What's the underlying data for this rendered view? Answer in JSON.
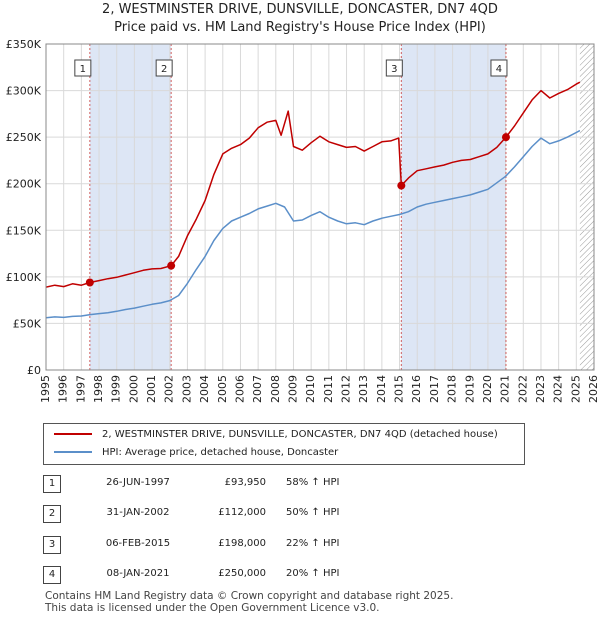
{
  "title": {
    "line1": "2, WESTMINSTER DRIVE, DUNSVILLE, DONCASTER, DN7 4QD",
    "line2": "Price paid vs. HM Land Registry's House Price Index (HPI)"
  },
  "colors": {
    "property": "#c00000",
    "hpi": "#5b8fc9",
    "band": "#dde6f5",
    "grid": "#d9d9d9",
    "marker_line": "#d06060"
  },
  "chart_data": {
    "type": "line",
    "xlim": [
      1995,
      2026
    ],
    "ylim": [
      0,
      350000
    ],
    "x_ticks": [
      1995,
      1996,
      1997,
      1998,
      1999,
      2000,
      2001,
      2002,
      2003,
      2004,
      2005,
      2006,
      2007,
      2008,
      2009,
      2010,
      2011,
      2012,
      2013,
      2014,
      2015,
      2016,
      2017,
      2018,
      2019,
      2020,
      2021,
      2022,
      2023,
      2024,
      2025,
      2026
    ],
    "y_ticks": [
      {
        "value": 0,
        "label": "£0"
      },
      {
        "value": 50000,
        "label": "£50K"
      },
      {
        "value": 100000,
        "label": "£100K"
      },
      {
        "value": 150000,
        "label": "£150K"
      },
      {
        "value": 200000,
        "label": "£200K"
      },
      {
        "value": 250000,
        "label": "£250K"
      },
      {
        "value": 300000,
        "label": "£300K"
      },
      {
        "value": 350000,
        "label": "£350K"
      }
    ],
    "shaded_bands": [
      [
        1997.48,
        2002.08
      ],
      [
        2015.1,
        2021.02
      ]
    ],
    "hatched_from": 2025.2,
    "series": [
      {
        "name": "2, WESTMINSTER DRIVE, DUNSVILLE, DONCASTER, DN7 4QD (detached house)",
        "points": [
          [
            1995.0,
            89000
          ],
          [
            1995.5,
            91000
          ],
          [
            1996.0,
            89500
          ],
          [
            1996.5,
            92500
          ],
          [
            1997.0,
            91000
          ],
          [
            1997.48,
            93950
          ],
          [
            1998.0,
            96000
          ],
          [
            1998.5,
            98000
          ],
          [
            1999.0,
            99500
          ],
          [
            1999.5,
            102000
          ],
          [
            2000.0,
            104500
          ],
          [
            2000.5,
            107000
          ],
          [
            2001.0,
            108500
          ],
          [
            2001.5,
            109000
          ],
          [
            2002.08,
            112000
          ],
          [
            2002.5,
            122000
          ],
          [
            2003.0,
            144000
          ],
          [
            2003.5,
            162000
          ],
          [
            2004.0,
            182000
          ],
          [
            2004.5,
            210000
          ],
          [
            2005.0,
            232000
          ],
          [
            2005.5,
            238000
          ],
          [
            2006.0,
            242000
          ],
          [
            2006.5,
            249000
          ],
          [
            2007.0,
            260000
          ],
          [
            2007.5,
            266000
          ],
          [
            2008.0,
            268000
          ],
          [
            2008.3,
            252000
          ],
          [
            2008.7,
            278000
          ],
          [
            2009.0,
            240000
          ],
          [
            2009.5,
            236000
          ],
          [
            2010.0,
            244000
          ],
          [
            2010.5,
            251000
          ],
          [
            2011.0,
            245000
          ],
          [
            2011.5,
            242000
          ],
          [
            2012.0,
            239000
          ],
          [
            2012.5,
            240000
          ],
          [
            2013.0,
            235000
          ],
          [
            2013.5,
            240000
          ],
          [
            2014.0,
            245000
          ],
          [
            2014.5,
            246000
          ],
          [
            2014.95,
            249000
          ],
          [
            2015.1,
            198000
          ],
          [
            2015.5,
            206000
          ],
          [
            2016.0,
            214000
          ],
          [
            2016.5,
            216000
          ],
          [
            2017.0,
            218000
          ],
          [
            2017.5,
            220000
          ],
          [
            2018.0,
            223000
          ],
          [
            2018.5,
            225000
          ],
          [
            2019.0,
            226000
          ],
          [
            2019.5,
            229000
          ],
          [
            2020.0,
            232000
          ],
          [
            2020.5,
            239000
          ],
          [
            2021.02,
            250000
          ],
          [
            2021.5,
            262000
          ],
          [
            2022.0,
            276000
          ],
          [
            2022.5,
            290000
          ],
          [
            2023.0,
            300000
          ],
          [
            2023.5,
            292000
          ],
          [
            2024.0,
            297000
          ],
          [
            2024.5,
            301000
          ],
          [
            2025.0,
            307000
          ],
          [
            2025.2,
            309000
          ]
        ]
      },
      {
        "name": "HPI: Average price, detached house, Doncaster",
        "points": [
          [
            1995.0,
            56000
          ],
          [
            1995.5,
            57000
          ],
          [
            1996.0,
            56500
          ],
          [
            1996.5,
            57500
          ],
          [
            1997.0,
            58000
          ],
          [
            1997.5,
            59500
          ],
          [
            1998.0,
            60500
          ],
          [
            1998.5,
            61500
          ],
          [
            1999.0,
            63000
          ],
          [
            1999.5,
            65000
          ],
          [
            2000.0,
            66500
          ],
          [
            2000.5,
            68500
          ],
          [
            2001.0,
            70500
          ],
          [
            2001.5,
            72000
          ],
          [
            2002.0,
            74500
          ],
          [
            2002.5,
            80000
          ],
          [
            2003.0,
            93000
          ],
          [
            2003.5,
            108000
          ],
          [
            2004.0,
            122000
          ],
          [
            2004.5,
            139000
          ],
          [
            2005.0,
            152000
          ],
          [
            2005.5,
            160000
          ],
          [
            2006.0,
            164000
          ],
          [
            2006.5,
            168000
          ],
          [
            2007.0,
            173000
          ],
          [
            2007.5,
            176000
          ],
          [
            2008.0,
            179000
          ],
          [
            2008.5,
            175000
          ],
          [
            2009.0,
            160000
          ],
          [
            2009.5,
            161000
          ],
          [
            2010.0,
            166000
          ],
          [
            2010.5,
            170000
          ],
          [
            2011.0,
            164000
          ],
          [
            2011.5,
            160000
          ],
          [
            2012.0,
            157000
          ],
          [
            2012.5,
            158000
          ],
          [
            2013.0,
            156000
          ],
          [
            2013.5,
            160000
          ],
          [
            2014.0,
            163000
          ],
          [
            2014.5,
            165000
          ],
          [
            2015.0,
            167000
          ],
          [
            2015.5,
            170000
          ],
          [
            2016.0,
            175000
          ],
          [
            2016.5,
            178000
          ],
          [
            2017.0,
            180000
          ],
          [
            2017.5,
            182000
          ],
          [
            2018.0,
            184000
          ],
          [
            2018.5,
            186000
          ],
          [
            2019.0,
            188000
          ],
          [
            2019.5,
            191000
          ],
          [
            2020.0,
            194000
          ],
          [
            2020.5,
            201000
          ],
          [
            2021.0,
            208000
          ],
          [
            2021.5,
            218000
          ],
          [
            2022.0,
            229000
          ],
          [
            2022.5,
            240000
          ],
          [
            2023.0,
            249000
          ],
          [
            2023.5,
            243000
          ],
          [
            2024.0,
            246000
          ],
          [
            2024.5,
            250000
          ],
          [
            2025.0,
            255000
          ],
          [
            2025.2,
            257000
          ]
        ]
      }
    ],
    "transactions": [
      {
        "num": "1",
        "x": 1997.48,
        "price": 93950
      },
      {
        "num": "2",
        "x": 2002.08,
        "price": 112000
      },
      {
        "num": "3",
        "x": 2015.1,
        "price": 198000
      },
      {
        "num": "4",
        "x": 2021.02,
        "price": 250000
      }
    ]
  },
  "legend": {
    "property_label": "2, WESTMINSTER DRIVE, DUNSVILLE, DONCASTER, DN7 4QD (detached house)",
    "hpi_label": "HPI: Average price, detached house, Doncaster"
  },
  "table": [
    {
      "num": "1",
      "date": "26-JUN-1997",
      "price": "£93,950",
      "hpi": "58% ↑ HPI"
    },
    {
      "num": "2",
      "date": "31-JAN-2002",
      "price": "£112,000",
      "hpi": "50% ↑ HPI"
    },
    {
      "num": "3",
      "date": "06-FEB-2015",
      "price": "£198,000",
      "hpi": "22% ↑ HPI"
    },
    {
      "num": "4",
      "date": "08-JAN-2021",
      "price": "£250,000",
      "hpi": "20% ↑ HPI"
    }
  ],
  "footer": {
    "line1": "Contains HM Land Registry data © Crown copyright and database right 2025.",
    "line2": "This data is licensed under the Open Government Licence v3.0."
  }
}
